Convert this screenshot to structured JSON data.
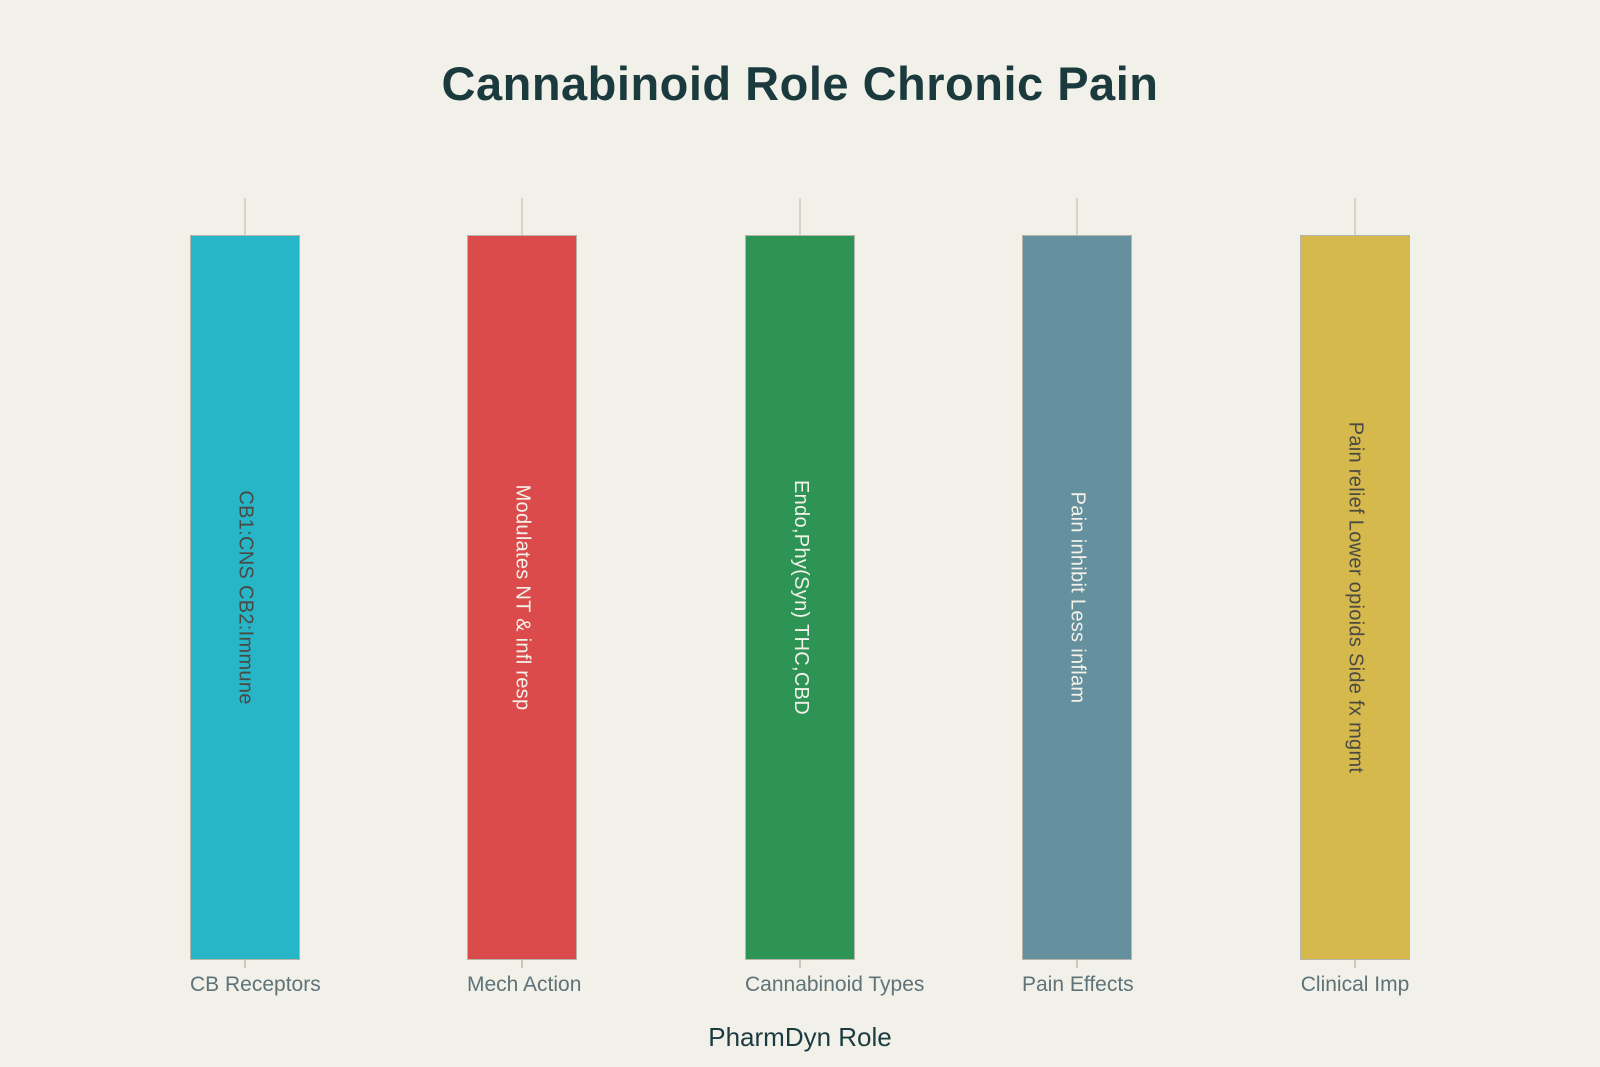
{
  "page": {
    "background": "#f1f1ea"
  },
  "chart_data": {
    "type": "bar",
    "title": "Cannabinoid Role Chronic Pain",
    "xlabel": "PharmDyn Role",
    "ylabel": "",
    "categories": [
      "CB Receptors",
      "Mech Action",
      "Cannabinoid Types",
      "Pain Effects",
      "Clinical Imp"
    ],
    "values": [
      1,
      1,
      1,
      1,
      1
    ],
    "bar_labels": [
      "CB1:CNS CB2:Immune",
      "Modulates NT & infl resp",
      "Endo,Phy(Syn) THC,CBD",
      "Pain inhibit Less inflam",
      "Pain relief Lower opioids Side fx mgmt"
    ],
    "bar_colors": [
      "#26b6c8",
      "#dc4b4b",
      "#2e9455",
      "#65909d",
      "#d5b94d"
    ],
    "bar_label_colors": [
      "#4a4a42",
      "#f3f1ea",
      "#f3f1ea",
      "#f3f1ea",
      "#4a4a42"
    ],
    "title_color": "#1b3a3e",
    "axis_title_color": "#1c3b40",
    "axis_label_color": "#5f7278",
    "grid": false,
    "legend": false,
    "orientation": "vertical",
    "bar_text_rotation_deg": 90
  }
}
